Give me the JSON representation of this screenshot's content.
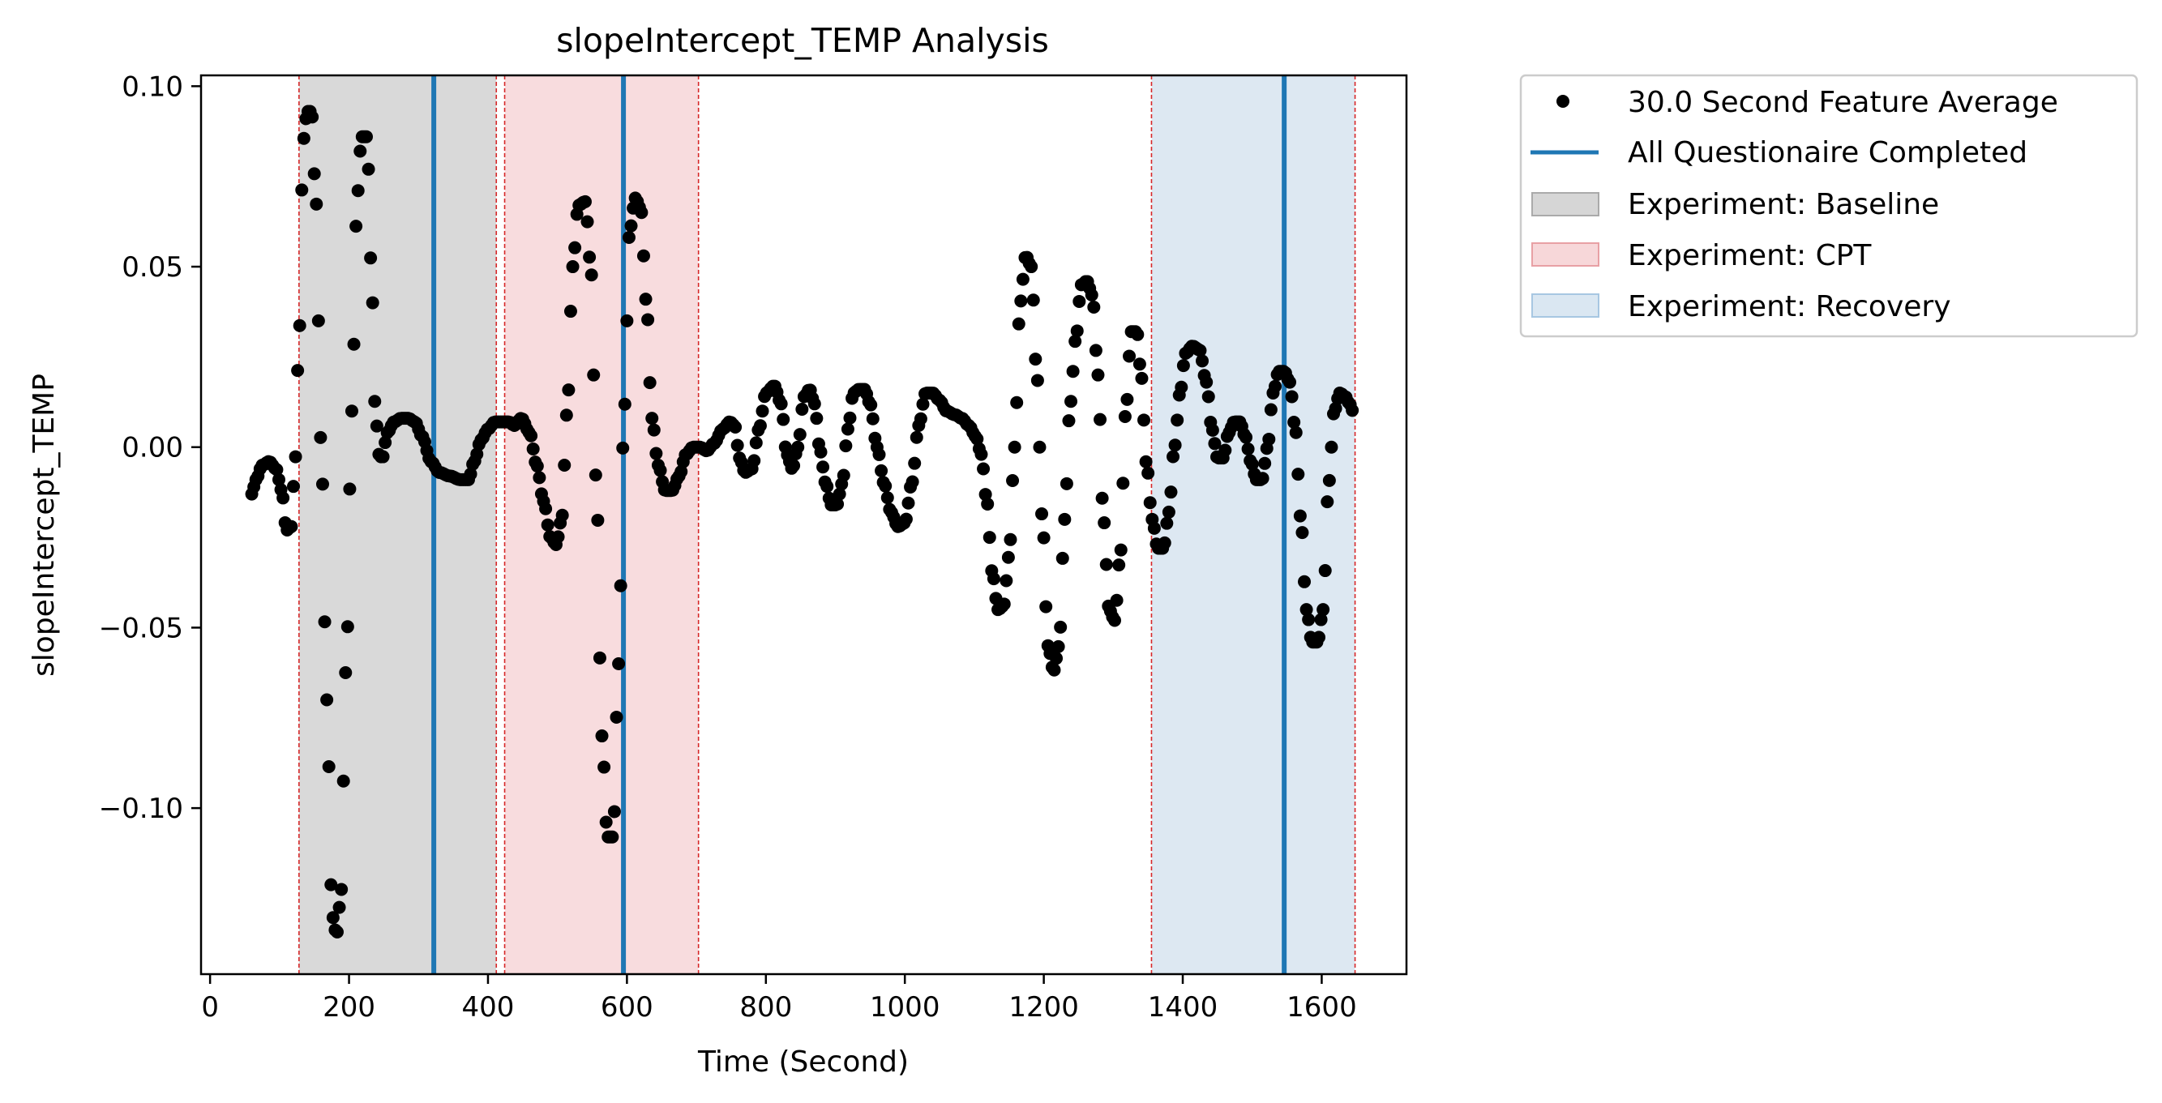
{
  "chart_data": {
    "type": "scatter",
    "title": "slopeIntercept_TEMP Analysis",
    "xlabel": "Time (Second)",
    "ylabel": "slopeIntercept_TEMP",
    "xlim": [
      -13,
      1722
    ],
    "ylim": [
      -0.146,
      0.103
    ],
    "x_ticks": [
      0,
      200,
      400,
      600,
      800,
      1000,
      1200,
      1400,
      1600
    ],
    "x_tick_labels": [
      "0",
      "200",
      "400",
      "600",
      "800",
      "1000",
      "1200",
      "1400",
      "1600"
    ],
    "y_ticks": [
      0.1,
      0.05,
      0.0,
      -0.05,
      -0.1
    ],
    "y_tick_labels": [
      "0.10",
      "0.05",
      "0.00",
      "−0.05",
      "−0.10"
    ],
    "grid": false,
    "legend_position": "outside right, top",
    "series": {
      "name": "30.0 Second Feature Average",
      "color": "#000000",
      "marker": "circle",
      "x_start": 60,
      "x_end": 1645,
      "x_step": 3,
      "keyframes": [
        [
          60,
          -0.013
        ],
        [
          66,
          -0.009
        ],
        [
          75,
          -0.005
        ],
        [
          85,
          -0.004
        ],
        [
          95,
          -0.006
        ],
        [
          103,
          -0.012
        ],
        [
          110,
          -0.023
        ],
        [
          117,
          -0.022
        ],
        [
          122,
          -0.005
        ],
        [
          128,
          0.03
        ],
        [
          134,
          0.085
        ],
        [
          140,
          0.093
        ],
        [
          146,
          0.093
        ],
        [
          152,
          0.07
        ],
        [
          160,
          0.0
        ],
        [
          168,
          -0.07
        ],
        [
          176,
          -0.13
        ],
        [
          182,
          -0.135
        ],
        [
          188,
          -0.125
        ],
        [
          196,
          -0.06
        ],
        [
          204,
          0.01
        ],
        [
          212,
          0.07
        ],
        [
          218,
          0.086
        ],
        [
          226,
          0.086
        ],
        [
          232,
          0.05
        ],
        [
          238,
          0.01
        ],
        [
          243,
          -0.002
        ],
        [
          248,
          -0.003
        ],
        [
          255,
          0.004
        ],
        [
          265,
          0.007
        ],
        [
          275,
          0.008
        ],
        [
          285,
          0.008
        ],
        [
          295,
          0.007
        ],
        [
          305,
          0.003
        ],
        [
          318,
          -0.004
        ],
        [
          330,
          -0.007
        ],
        [
          345,
          -0.008
        ],
        [
          360,
          -0.009
        ],
        [
          372,
          -0.009
        ],
        [
          380,
          -0.004
        ],
        [
          390,
          0.002
        ],
        [
          400,
          0.005
        ],
        [
          410,
          0.007
        ],
        [
          420,
          0.007
        ],
        [
          430,
          0.007
        ],
        [
          438,
          0.006
        ],
        [
          448,
          0.008
        ],
        [
          460,
          0.004
        ],
        [
          470,
          -0.005
        ],
        [
          480,
          -0.015
        ],
        [
          490,
          -0.025
        ],
        [
          498,
          -0.027
        ],
        [
          506,
          -0.02
        ],
        [
          514,
          0.01
        ],
        [
          522,
          0.05
        ],
        [
          530,
          0.067
        ],
        [
          540,
          0.068
        ],
        [
          548,
          0.05
        ],
        [
          556,
          -0.01
        ],
        [
          564,
          -0.08
        ],
        [
          572,
          -0.108
        ],
        [
          580,
          -0.108
        ],
        [
          588,
          -0.06
        ],
        [
          596,
          0.01
        ],
        [
          604,
          0.06
        ],
        [
          612,
          0.069
        ],
        [
          620,
          0.066
        ],
        [
          628,
          0.04
        ],
        [
          636,
          0.008
        ],
        [
          645,
          -0.005
        ],
        [
          655,
          -0.012
        ],
        [
          665,
          -0.012
        ],
        [
          675,
          -0.008
        ],
        [
          685,
          -0.002
        ],
        [
          695,
          0.0
        ],
        [
          705,
          0.0
        ],
        [
          715,
          -0.001
        ],
        [
          725,
          0.001
        ],
        [
          738,
          0.005
        ],
        [
          748,
          0.007
        ],
        [
          755,
          0.006
        ],
        [
          762,
          -0.003
        ],
        [
          770,
          -0.007
        ],
        [
          780,
          -0.006
        ],
        [
          790,
          0.005
        ],
        [
          800,
          0.015
        ],
        [
          812,
          0.017
        ],
        [
          822,
          0.012
        ],
        [
          830,
          -0.002
        ],
        [
          838,
          -0.006
        ],
        [
          846,
          0.0
        ],
        [
          855,
          0.014
        ],
        [
          863,
          0.016
        ],
        [
          870,
          0.012
        ],
        [
          878,
          -0.001
        ],
        [
          886,
          -0.01
        ],
        [
          894,
          -0.016
        ],
        [
          902,
          -0.016
        ],
        [
          910,
          -0.01
        ],
        [
          918,
          0.005
        ],
        [
          926,
          0.015
        ],
        [
          934,
          0.016
        ],
        [
          942,
          0.016
        ],
        [
          950,
          0.012
        ],
        [
          960,
          0.0
        ],
        [
          970,
          -0.01
        ],
        [
          980,
          -0.018
        ],
        [
          990,
          -0.022
        ],
        [
          1000,
          -0.021
        ],
        [
          1010,
          -0.01
        ],
        [
          1020,
          0.006
        ],
        [
          1030,
          0.015
        ],
        [
          1040,
          0.015
        ],
        [
          1050,
          0.013
        ],
        [
          1060,
          0.01
        ],
        [
          1072,
          0.009
        ],
        [
          1082,
          0.008
        ],
        [
          1092,
          0.006
        ],
        [
          1102,
          0.003
        ],
        [
          1110,
          -0.002
        ],
        [
          1118,
          -0.015
        ],
        [
          1126,
          -0.035
        ],
        [
          1134,
          -0.045
        ],
        [
          1142,
          -0.044
        ],
        [
          1150,
          -0.03
        ],
        [
          1158,
          0.0
        ],
        [
          1166,
          0.04
        ],
        [
          1174,
          0.053
        ],
        [
          1182,
          0.05
        ],
        [
          1190,
          0.02
        ],
        [
          1198,
          -0.02
        ],
        [
          1206,
          -0.055
        ],
        [
          1214,
          -0.062
        ],
        [
          1222,
          -0.055
        ],
        [
          1230,
          -0.02
        ],
        [
          1238,
          0.012
        ],
        [
          1246,
          0.03
        ],
        [
          1254,
          0.045
        ],
        [
          1262,
          0.046
        ],
        [
          1270,
          0.042
        ],
        [
          1278,
          0.02
        ],
        [
          1286,
          -0.02
        ],
        [
          1294,
          -0.045
        ],
        [
          1302,
          -0.048
        ],
        [
          1310,
          -0.03
        ],
        [
          1318,
          0.01
        ],
        [
          1326,
          0.032
        ],
        [
          1334,
          0.032
        ],
        [
          1340,
          0.02
        ],
        [
          1348,
          -0.005
        ],
        [
          1356,
          -0.02
        ],
        [
          1364,
          -0.028
        ],
        [
          1372,
          -0.028
        ],
        [
          1380,
          -0.018
        ],
        [
          1388,
          0.0
        ],
        [
          1396,
          0.015
        ],
        [
          1404,
          0.026
        ],
        [
          1414,
          0.028
        ],
        [
          1424,
          0.027
        ],
        [
          1434,
          0.018
        ],
        [
          1442,
          0.005
        ],
        [
          1450,
          -0.003
        ],
        [
          1458,
          -0.003
        ],
        [
          1466,
          0.004
        ],
        [
          1474,
          0.007
        ],
        [
          1482,
          0.007
        ],
        [
          1490,
          0.003
        ],
        [
          1498,
          -0.004
        ],
        [
          1506,
          -0.009
        ],
        [
          1514,
          -0.009
        ],
        [
          1522,
          0.0
        ],
        [
          1530,
          0.015
        ],
        [
          1538,
          0.021
        ],
        [
          1546,
          0.021
        ],
        [
          1554,
          0.018
        ],
        [
          1562,
          0.005
        ],
        [
          1570,
          -0.02
        ],
        [
          1578,
          -0.045
        ],
        [
          1586,
          -0.054
        ],
        [
          1594,
          -0.054
        ],
        [
          1602,
          -0.045
        ],
        [
          1610,
          -0.01
        ],
        [
          1618,
          0.01
        ],
        [
          1626,
          0.015
        ],
        [
          1634,
          0.014
        ],
        [
          1640,
          0.012
        ],
        [
          1645,
          0.01
        ]
      ]
    },
    "vlines": {
      "name": "All Questionaire Completed",
      "color": "#1f77b4",
      "x": [
        322,
        595,
        1546
      ]
    },
    "spans": [
      {
        "name": "Experiment: Baseline",
        "color": "#d9d9d9",
        "legend_color": "#d6d6d6",
        "edge_color": "#aaaaaa",
        "x0": 128,
        "x1": 412
      },
      {
        "name": "Experiment: CPT",
        "color": "#f8dcde",
        "legend_color": "#f7d7d9",
        "edge_color": "#e8a0a4",
        "x0": 424,
        "x1": 703
      },
      {
        "name": "Experiment: Recovery",
        "color": "#dde8f2",
        "legend_color": "#dae7f2",
        "edge_color": "#a7c7e2",
        "x0": 1355,
        "x1": 1648
      }
    ],
    "span_edge_color": "#d62728"
  }
}
